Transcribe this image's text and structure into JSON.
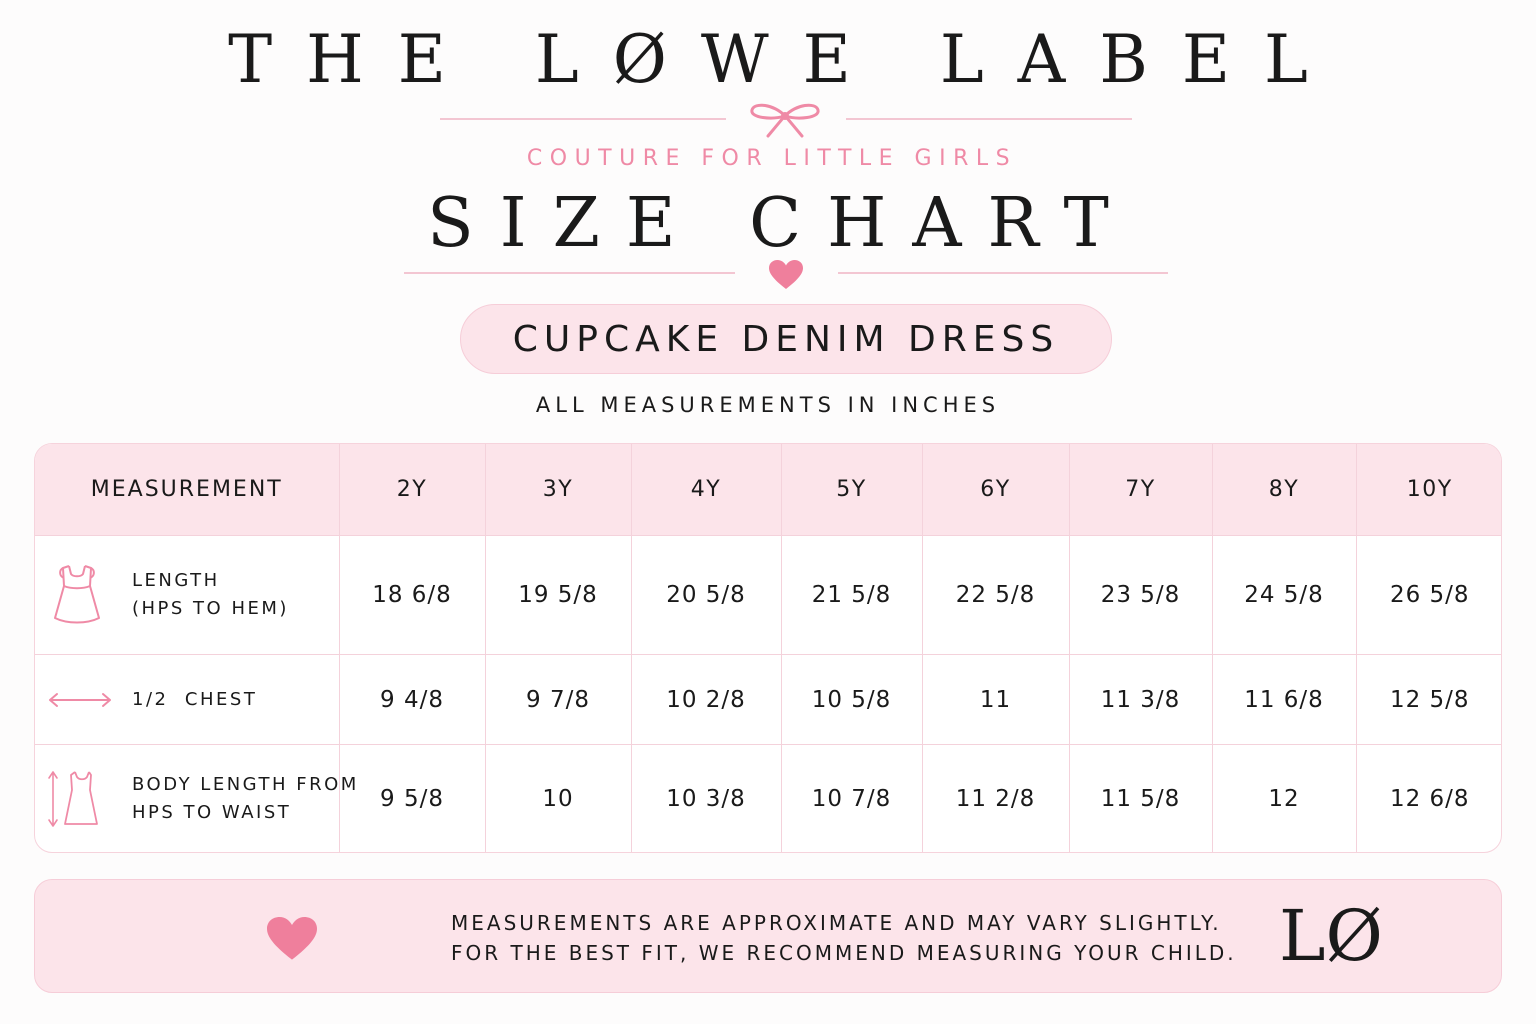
{
  "brand": {
    "name": "THE LØWE LABEL",
    "tagline": "COUTURE FOR LITTLE GIRLS",
    "logo_mark": "LØ"
  },
  "header": {
    "title": "SIZE CHART",
    "product": "CUPCAKE DENIM DRESS",
    "units_note": "ALL MEASUREMENTS IN INCHES"
  },
  "colors": {
    "accent_pink": "#ef8aa6",
    "panel_pink": "#fce4ea",
    "rule_pink": "#f3c6d2",
    "text": "#1a1a1a"
  },
  "table": {
    "header_label": "MEASUREMENT",
    "sizes": [
      "2Y",
      "3Y",
      "4Y",
      "5Y",
      "6Y",
      "7Y",
      "8Y",
      "10Y"
    ],
    "rows": [
      {
        "icon": "dress-icon",
        "label_line1": "LENGTH",
        "label_line2": "(HPS TO HEM)",
        "values": [
          "18 6/8",
          "19 5/8",
          "20 5/8",
          "21 5/8",
          "22 5/8",
          "23 5/8",
          "24 5/8",
          "26 5/8"
        ]
      },
      {
        "icon": "horizontal-arrow-icon",
        "label_line1": "1/2  CHEST",
        "label_line2": "",
        "values": [
          "9 4/8",
          "9 7/8",
          "10 2/8",
          "10 5/8",
          "11",
          "11 3/8",
          "11 6/8",
          "12 5/8"
        ]
      },
      {
        "icon": "bodice-length-icon",
        "label_line1": "BODY LENGTH FROM",
        "label_line2": "HPS TO WAIST",
        "values": [
          "9 5/8",
          "10",
          "10 3/8",
          "10 7/8",
          "11 2/8",
          "11 5/8",
          "12",
          "12 6/8"
        ]
      }
    ]
  },
  "footer": {
    "line1": "MEASUREMENTS ARE APPROXIMATE AND MAY VARY SLIGHTLY.",
    "line2": "FOR THE BEST FIT, WE RECOMMEND MEASURING YOUR CHILD."
  }
}
